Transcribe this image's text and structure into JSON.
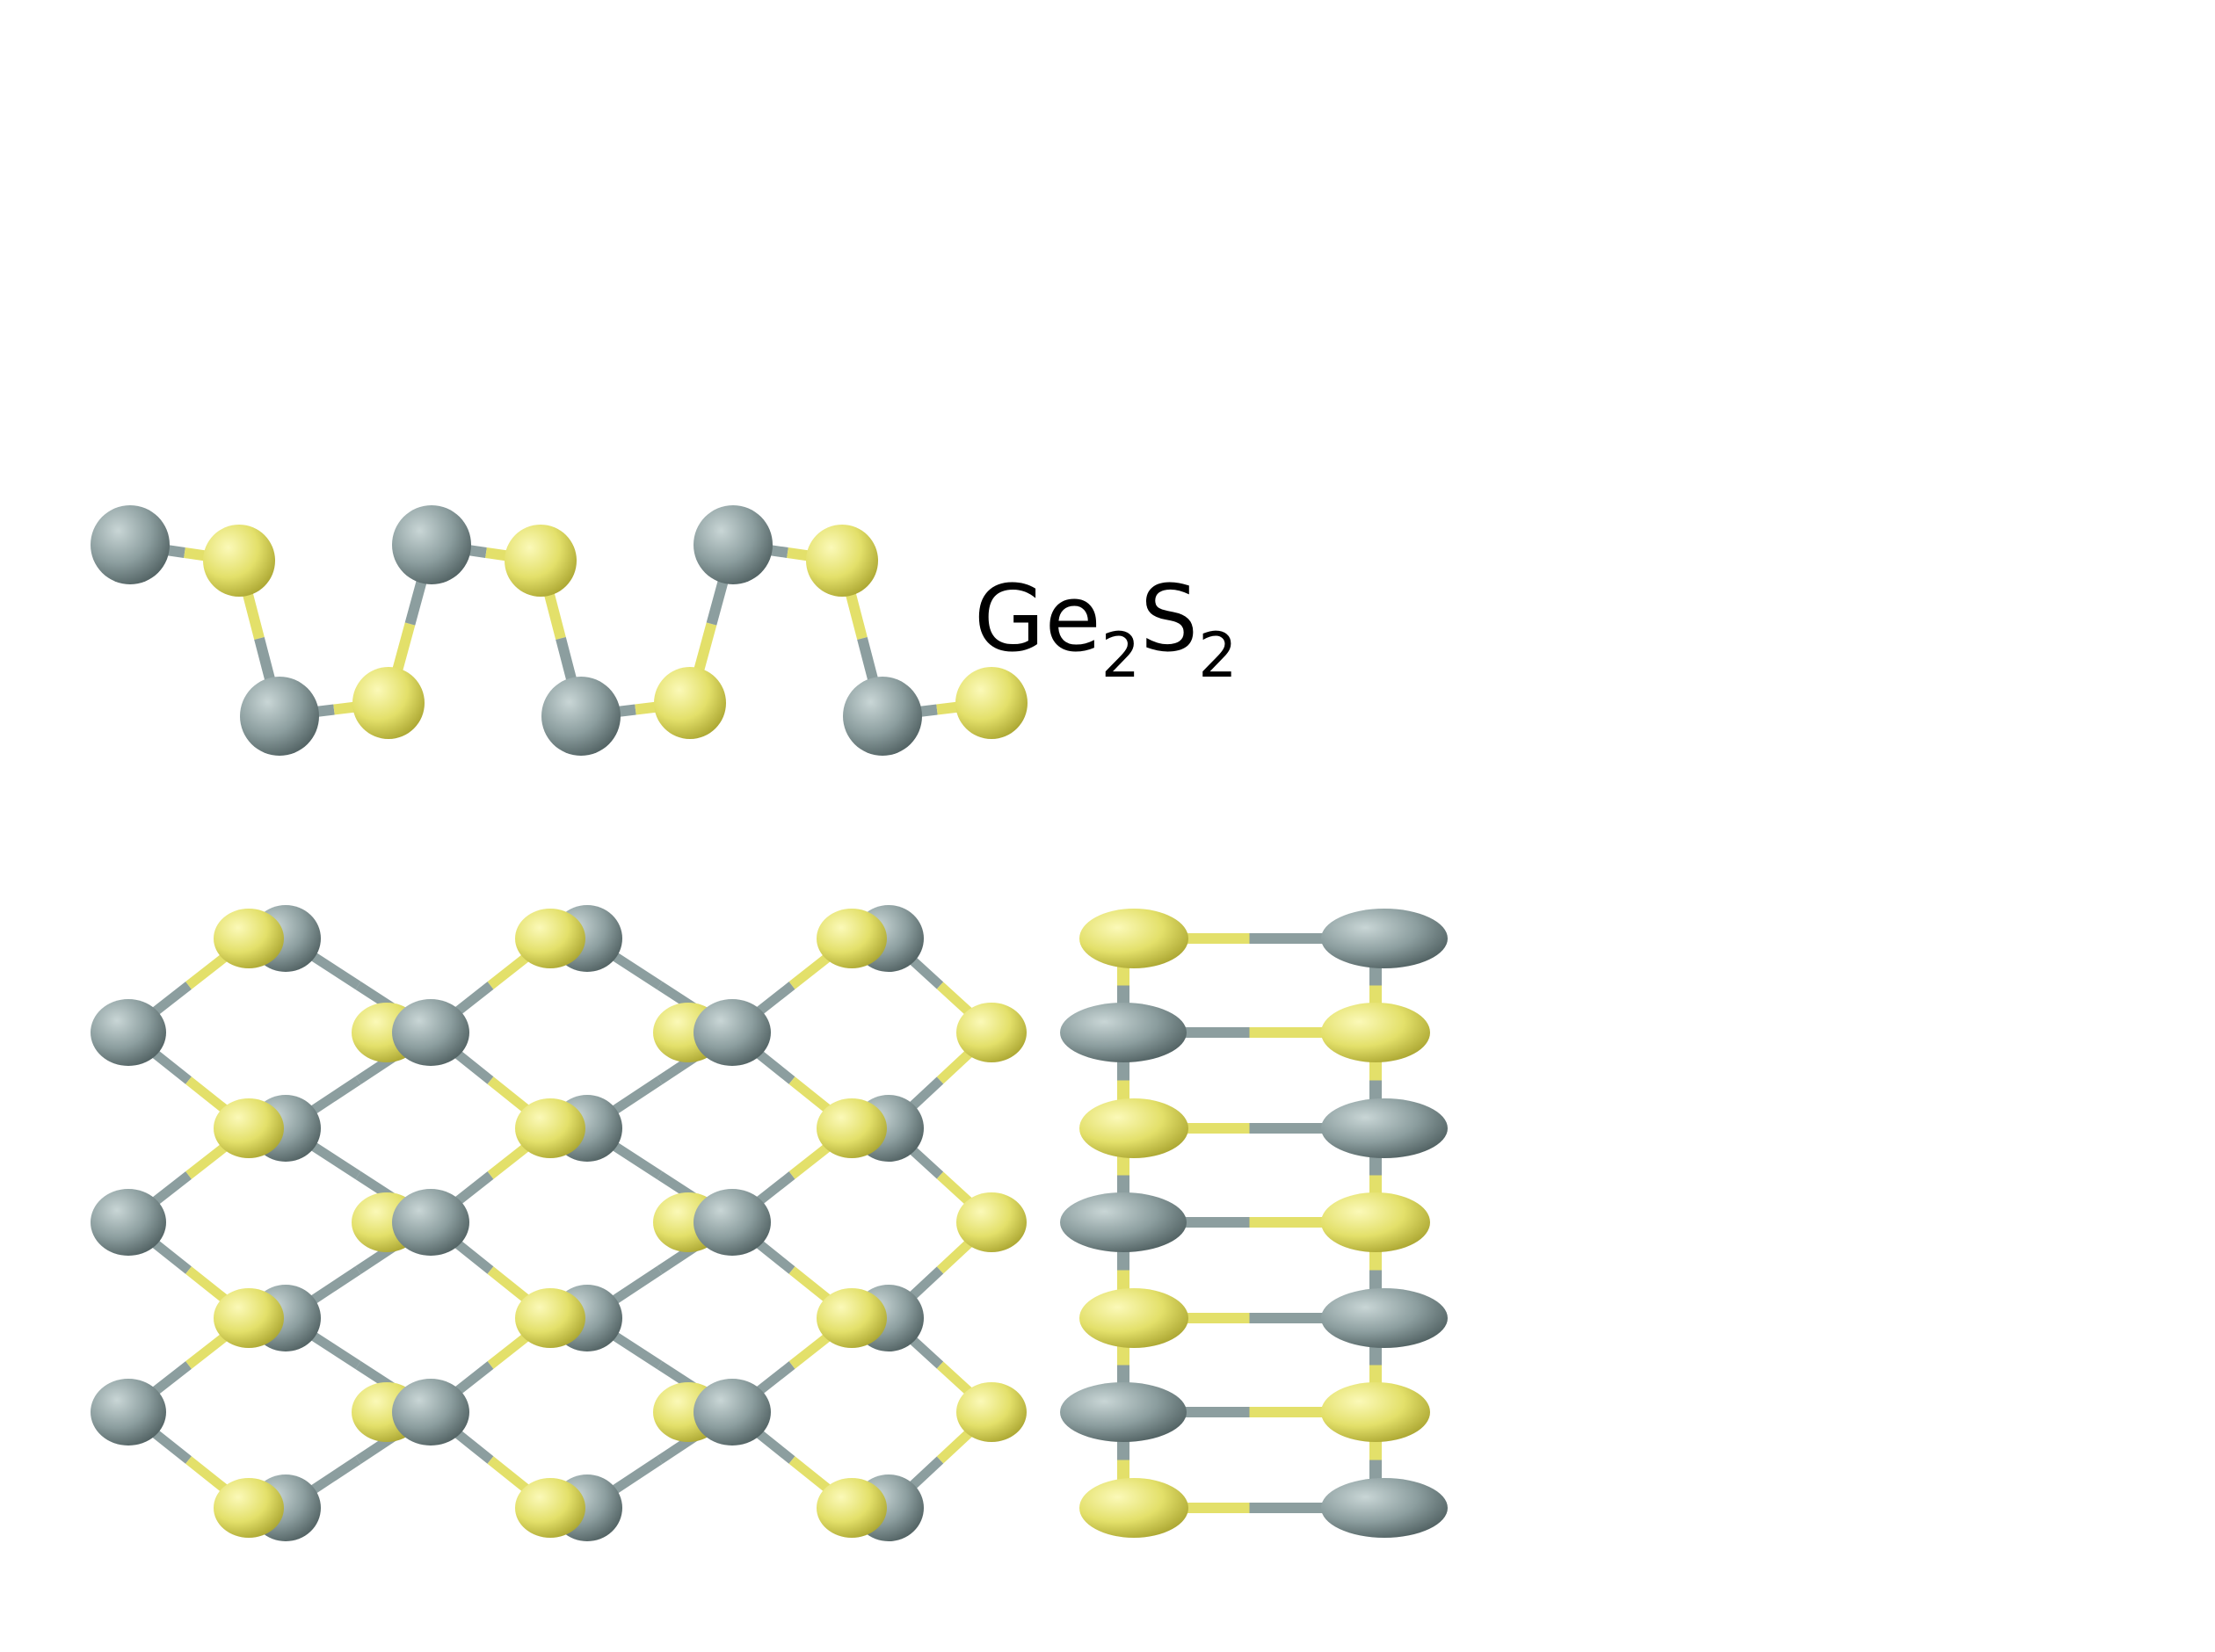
{
  "title": {
    "element1": "Ge",
    "sub1": "2",
    "element2": "S",
    "sub2": "2"
  },
  "colors": {
    "germanium": "#8c9e9f",
    "germanium_dark": "#4f5f60",
    "germanium_light": "#c9d6d6",
    "sulfur": "#e3e06a",
    "sulfur_dark": "#a9a430",
    "sulfur_light": "#fbf9b8"
  }
}
